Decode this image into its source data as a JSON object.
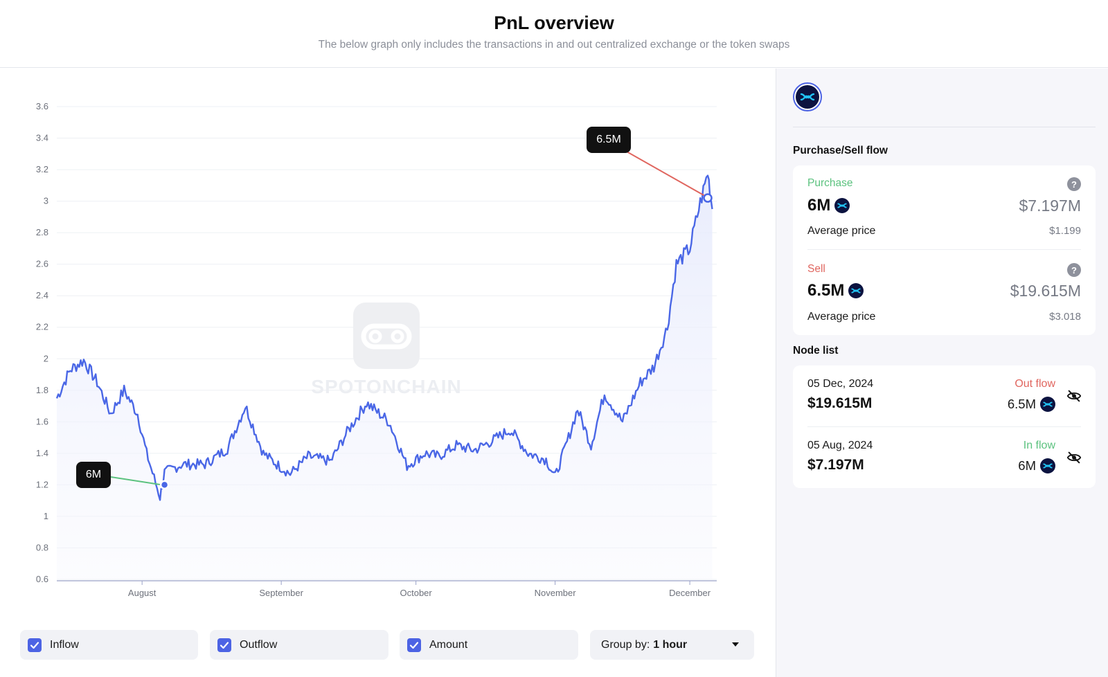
{
  "header": {
    "title": "PnL overview",
    "subtitle": "The below graph only includes the transactions in and out centralized exchange or the token swaps"
  },
  "colors": {
    "line": "#4a67e6",
    "area": "#eef1fd",
    "sell": "#e0665f",
    "buy": "#5cc27f",
    "accent": "#4c63e4"
  },
  "chart": {
    "watermark_icon": "spotonchain-logo-icon",
    "watermark_text": "SPOTONCHAIN",
    "bubbles": {
      "sell": "6.5M",
      "buy": "6M"
    }
  },
  "chart_data": {
    "type": "line",
    "series_note": "token price",
    "ylim": [
      0.6,
      3.6
    ],
    "yticks": [
      "3.6",
      "3.4",
      "3.2",
      "3",
      "2.8",
      "2.6",
      "2.4",
      "2.2",
      "2",
      "1.8",
      "1.6",
      "1.4",
      "1.2",
      "1",
      "0.8",
      "0.6"
    ],
    "xticks": [
      "August",
      "September",
      "October",
      "November",
      "December"
    ],
    "x": [
      "Jul 13",
      "Jul 16",
      "Jul 19",
      "Jul 22",
      "Jul 25",
      "Jul 28",
      "Jul 31",
      "Aug 2",
      "Aug 5",
      "Aug 6",
      "Aug 10",
      "Aug 15",
      "Aug 20",
      "Aug 24",
      "Aug 28",
      "Aug 31",
      "Sep 3",
      "Sep 7",
      "Sep 12",
      "Sep 16",
      "Sep 20",
      "Sep 25",
      "Sep 29",
      "Oct 3",
      "Oct 6",
      "Oct 10",
      "Oct 14",
      "Oct 18",
      "Oct 22",
      "Oct 26",
      "Oct 30",
      "Nov 1",
      "Nov 4",
      "Nov 6",
      "Nov 9",
      "Nov 12",
      "Nov 16",
      "Nov 20",
      "Nov 23",
      "Nov 26",
      "Nov 28",
      "Dec 1",
      "Dec 3",
      "Dec 5",
      "Dec 6"
    ],
    "values": [
      1.75,
      1.93,
      1.99,
      1.85,
      1.65,
      1.8,
      1.65,
      1.4,
      1.12,
      1.28,
      1.33,
      1.33,
      1.43,
      1.7,
      1.4,
      1.33,
      1.27,
      1.38,
      1.35,
      1.55,
      1.72,
      1.6,
      1.32,
      1.4,
      1.38,
      1.45,
      1.42,
      1.48,
      1.55,
      1.4,
      1.36,
      1.25,
      1.5,
      1.68,
      1.45,
      1.78,
      1.6,
      1.85,
      1.95,
      2.2,
      2.6,
      2.7,
      2.95,
      3.18,
      2.95
    ],
    "annotations": [
      {
        "label": "6M",
        "date": "Aug 6",
        "value": 1.2,
        "type": "buy"
      },
      {
        "label": "6.5M",
        "date": "Dec 5",
        "value": 3.02,
        "type": "sell"
      }
    ]
  },
  "controls": {
    "inflow_label": "Inflow",
    "outflow_label": "Outflow",
    "amount_label": "Amount",
    "group_by_label": "Group by:",
    "group_by_value": "1 hour"
  },
  "sidebar": {
    "token_icon": "token-logo-icon",
    "purchase_sell_title": "Purchase/Sell flow",
    "purchase": {
      "label": "Purchase",
      "amount": "6M",
      "usd": "$7.197M",
      "avg_label": "Average price",
      "avg_value": "$1.199"
    },
    "sell": {
      "label": "Sell",
      "amount": "6.5M",
      "usd": "$19.615M",
      "avg_label": "Average price",
      "avg_value": "$3.018"
    },
    "node_list_title": "Node list",
    "nodes": [
      {
        "date": "05 Dec, 2024",
        "usd": "$19.615M",
        "type": "Out flow",
        "amount": "6.5M"
      },
      {
        "date": "05 Aug, 2024",
        "usd": "$7.197M",
        "type": "In flow",
        "amount": "6M"
      }
    ]
  }
}
